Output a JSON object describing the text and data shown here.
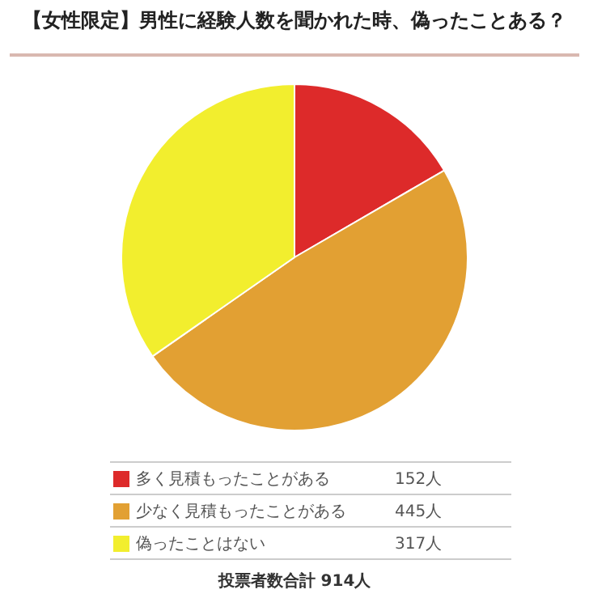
{
  "chart_data": {
    "type": "pie",
    "title": "【女性限定】男性に経験人数を聞かれた時、偽ったことある？",
    "categories": [
      "多く見積もったことがある",
      "少なく見積もったことがある",
      "偽ったことはない"
    ],
    "values": [
      152,
      445,
      317
    ],
    "colors": [
      "#dd2a2a",
      "#e2a033",
      "#f2ee2e"
    ],
    "value_labels": [
      "152人",
      "445人",
      "317人"
    ],
    "legend": "bottom",
    "annotations": [
      "投票者数合計 914人"
    ]
  }
}
